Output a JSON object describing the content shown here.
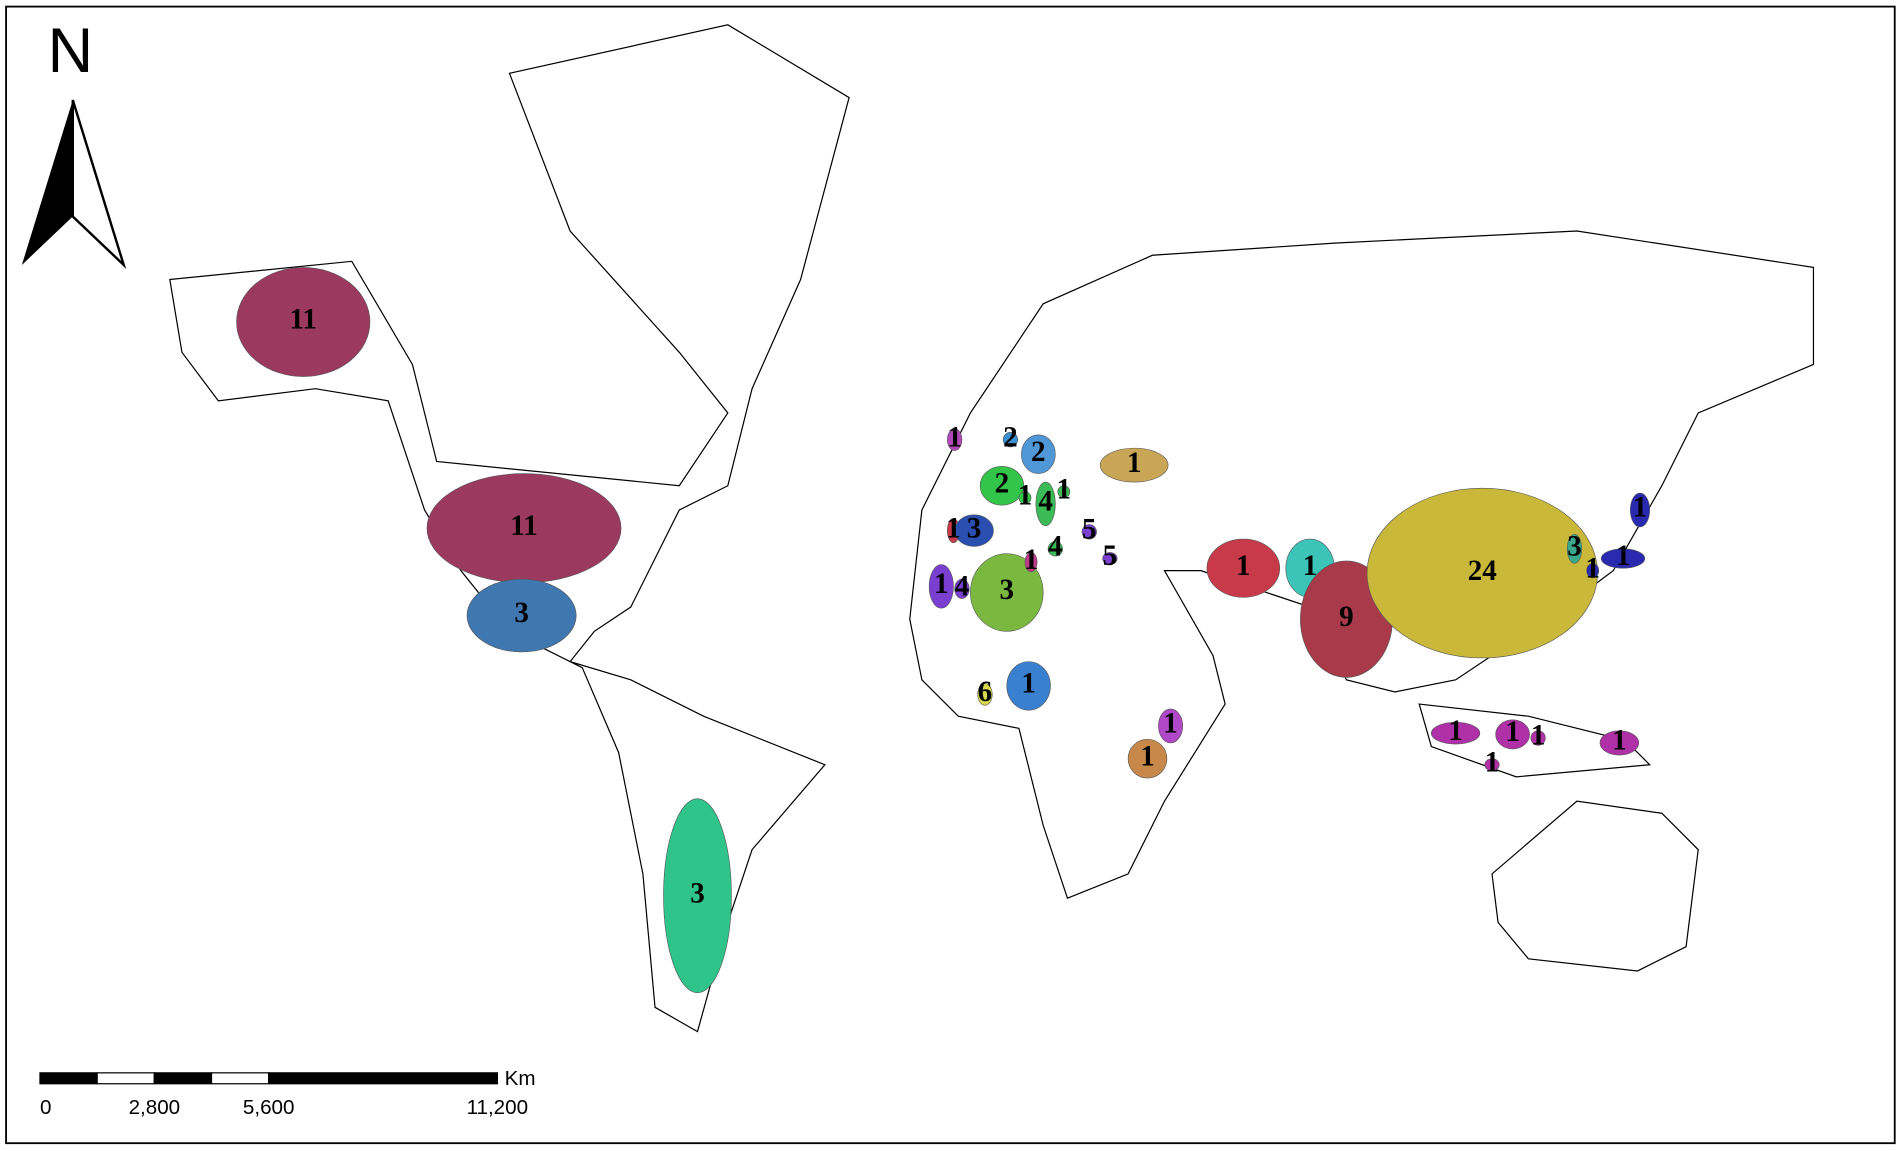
{
  "north_label": "N",
  "scale_bar": {
    "unit": "Km",
    "ticks": [
      {
        "value": 0,
        "label": "0"
      },
      {
        "value": 2800,
        "label": "2,800"
      },
      {
        "value": 5600,
        "label": "5,600"
      },
      {
        "value": 11200,
        "label": "11,200"
      }
    ]
  },
  "regions": [
    {
      "count": 11,
      "color": "#9b3a5e"
    },
    {
      "count": 11,
      "color": "#9b3a5e"
    },
    {
      "count": 3,
      "color": "#3f77b0"
    },
    {
      "count": 3,
      "color": "#2ec48a"
    },
    {
      "count": 1,
      "color": "#b048b8"
    },
    {
      "count": 2,
      "color": "#3a8fd0"
    },
    {
      "count": 2,
      "color": "#4f97d6"
    },
    {
      "count": 2,
      "color": "#33c44a"
    },
    {
      "count": 1,
      "color": "#33c44a"
    },
    {
      "count": 4,
      "color": "#3bbb56"
    },
    {
      "count": 1,
      "color": "#3bbb56"
    },
    {
      "count": 1,
      "color": "#c83a4a"
    },
    {
      "count": 3,
      "color": "#2a4fb0"
    },
    {
      "count": 1,
      "color": "#7a3fd0"
    },
    {
      "count": 4,
      "color": "#7a3fd0"
    },
    {
      "count": 3,
      "color": "#7ab840"
    },
    {
      "count": 1,
      "color": "#c03a8a"
    },
    {
      "count": 4,
      "color": "#3bbb56"
    },
    {
      "count": 5,
      "color": "#7a3fd0"
    },
    {
      "count": 5,
      "color": "#7a3fd0"
    },
    {
      "count": 1,
      "color": "#c9a556"
    },
    {
      "count": 1,
      "color": "#c83a4a"
    },
    {
      "count": 1,
      "color": "#3cc4b8"
    },
    {
      "count": 9,
      "color": "#a83a4a"
    },
    {
      "count": 24,
      "color": "#c9b83a"
    },
    {
      "count": 3,
      "color": "#3aa88a"
    },
    {
      "count": 1,
      "color": "#2a2ab0"
    },
    {
      "count": 1,
      "color": "#2a2ab0"
    },
    {
      "count": 1,
      "color": "#2a2ab0"
    },
    {
      "count": 1,
      "color": "#3a80d0"
    },
    {
      "count": 6,
      "color": "#d8d84a"
    },
    {
      "count": 1,
      "color": "#b048c8"
    },
    {
      "count": 1,
      "color": "#c8884a"
    },
    {
      "count": 1,
      "color": "#b030a8"
    },
    {
      "count": 1,
      "color": "#b030a8"
    },
    {
      "count": 1,
      "color": "#b030a8"
    },
    {
      "count": 1,
      "color": "#b030a8"
    },
    {
      "count": 1,
      "color": "#b030a8"
    }
  ]
}
